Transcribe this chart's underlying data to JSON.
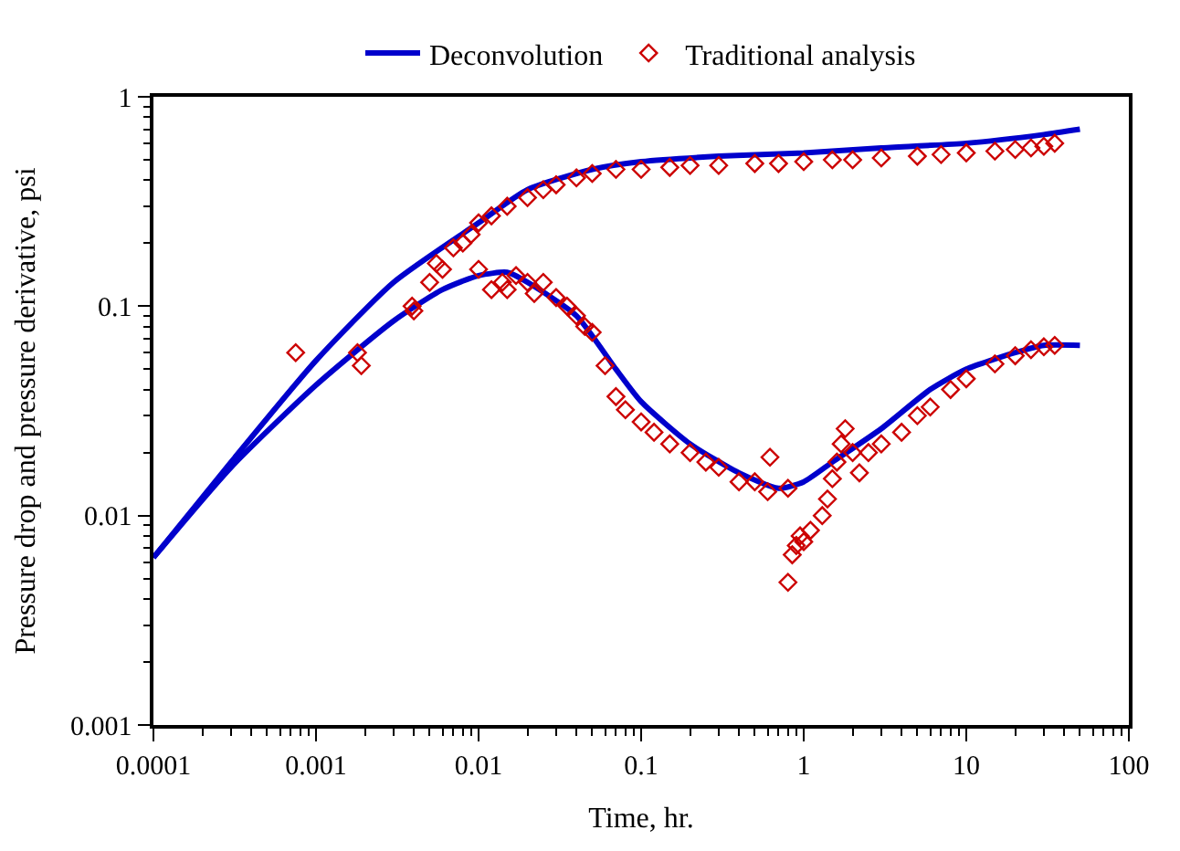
{
  "chart_data": {
    "type": "line",
    "xlabel": "Time, hr.",
    "ylabel": "Pressure drop and pressure derivative, psi",
    "log": "xy",
    "legend": "top",
    "xlim": [
      0.0001,
      100
    ],
    "xticks": [
      {
        "value": 0.0001,
        "label": "0.0001"
      },
      {
        "value": 0.001,
        "label": "0.001"
      },
      {
        "value": 0.01,
        "label": "0.01"
      },
      {
        "value": 0.1,
        "label": "0.1"
      },
      {
        "value": 1,
        "label": "1"
      },
      {
        "value": 10,
        "label": "10"
      },
      {
        "value": 100,
        "label": "100"
      }
    ],
    "ylim": [
      0.001,
      1
    ],
    "yticks": [
      {
        "value": 0.001,
        "label": "0.001"
      },
      {
        "value": 0.01,
        "label": "0.01"
      },
      {
        "value": 0.1,
        "label": "0.1"
      },
      {
        "value": 1,
        "label": "1"
      }
    ],
    "series": [
      {
        "name": "Deconvolution",
        "marker": "none",
        "line_style": "solid",
        "color": "#0000cc",
        "x": [
          0.0001,
          0.0003,
          0.001,
          0.003,
          0.01,
          0.02,
          0.05,
          0.1,
          0.3,
          1,
          3,
          10,
          30,
          50
        ],
        "values": [
          0.0063,
          0.018,
          0.055,
          0.13,
          0.25,
          0.36,
          0.45,
          0.49,
          0.52,
          0.54,
          0.57,
          0.6,
          0.66,
          0.7
        ]
      },
      {
        "marker": "none",
        "line_style": "solid",
        "color": "#0000cc",
        "x": [
          0.0001,
          0.0003,
          0.001,
          0.003,
          0.006,
          0.01,
          0.015,
          0.02,
          0.04,
          0.07,
          0.1,
          0.2,
          0.4,
          0.7,
          1,
          1.5,
          3,
          6,
          10,
          20,
          30,
          50
        ],
        "values": [
          0.0063,
          0.017,
          0.042,
          0.085,
          0.12,
          0.14,
          0.145,
          0.13,
          0.09,
          0.05,
          0.035,
          0.022,
          0.016,
          0.0135,
          0.0145,
          0.018,
          0.026,
          0.04,
          0.05,
          0.06,
          0.065,
          0.065
        ]
      },
      {
        "name": "Traditional analysis",
        "type": "scatter",
        "marker": "diamond",
        "color": "#cc0000",
        "x": [
          0.005,
          0.0055,
          0.006,
          0.007,
          0.008,
          0.009,
          0.01,
          0.012,
          0.015,
          0.02,
          0.025,
          0.03,
          0.04,
          0.05,
          0.07,
          0.1,
          0.15,
          0.2,
          0.3,
          0.5,
          0.7,
          1,
          1.5,
          2,
          3,
          5,
          7,
          10,
          15,
          20,
          25,
          30,
          35
        ],
        "values": [
          0.13,
          0.16,
          0.15,
          0.19,
          0.2,
          0.22,
          0.25,
          0.27,
          0.3,
          0.33,
          0.36,
          0.38,
          0.41,
          0.43,
          0.45,
          0.45,
          0.46,
          0.47,
          0.47,
          0.48,
          0.48,
          0.49,
          0.5,
          0.5,
          0.51,
          0.52,
          0.53,
          0.54,
          0.55,
          0.56,
          0.57,
          0.58,
          0.6
        ]
      },
      {
        "type": "scatter",
        "marker": "diamond",
        "color": "#cc0000",
        "x": [
          0.00075,
          0.0018,
          0.0019,
          0.0039,
          0.004,
          0.01,
          0.012,
          0.014,
          0.015,
          0.017,
          0.02,
          0.022,
          0.025,
          0.03,
          0.035,
          0.04,
          0.045,
          0.05,
          0.06,
          0.07,
          0.08,
          0.1,
          0.12,
          0.15,
          0.2,
          0.25,
          0.3,
          0.4,
          0.5,
          0.6,
          0.62,
          0.8,
          0.8,
          0.85,
          0.9,
          0.95,
          1.0,
          1.1,
          1.3,
          1.4,
          1.5,
          1.6,
          1.7,
          1.8,
          2,
          2.2,
          2.5,
          3,
          4,
          5,
          6,
          8,
          10,
          15,
          20,
          25,
          30,
          35
        ],
        "values": [
          0.06,
          0.06,
          0.052,
          0.1,
          0.095,
          0.15,
          0.12,
          0.13,
          0.12,
          0.14,
          0.13,
          0.115,
          0.13,
          0.11,
          0.1,
          0.09,
          0.08,
          0.075,
          0.052,
          0.037,
          0.032,
          0.028,
          0.025,
          0.022,
          0.02,
          0.018,
          0.017,
          0.0145,
          0.0145,
          0.013,
          0.019,
          0.0135,
          0.0048,
          0.0065,
          0.0072,
          0.008,
          0.0075,
          0.0085,
          0.01,
          0.012,
          0.015,
          0.018,
          0.022,
          0.026,
          0.02,
          0.016,
          0.02,
          0.022,
          0.025,
          0.03,
          0.033,
          0.04,
          0.045,
          0.053,
          0.058,
          0.062,
          0.064,
          0.065
        ]
      }
    ]
  }
}
